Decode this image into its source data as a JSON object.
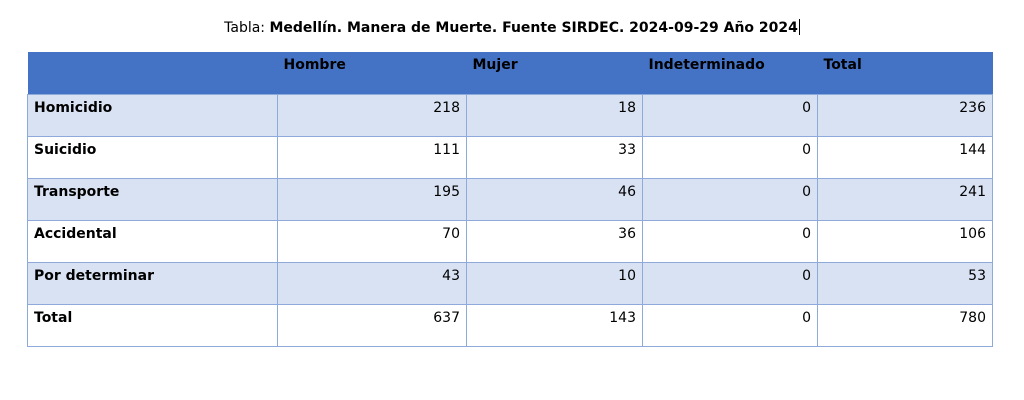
{
  "caption": {
    "prefix": "Tabla: ",
    "title": "Medellín. Manera de Muerte. Fuente SIRDEC. 2024-09-29 Año 2024"
  },
  "table": {
    "headers": [
      "",
      "Hombre",
      "Mujer",
      "Indeterminado",
      "Total"
    ],
    "rows": [
      {
        "label": "Homicidio",
        "values": [
          "218",
          "18",
          "0",
          "236"
        ]
      },
      {
        "label": "Suicidio",
        "values": [
          "111",
          "33",
          "0",
          "144"
        ]
      },
      {
        "label": "Transporte",
        "values": [
          "195",
          "46",
          "0",
          "241"
        ]
      },
      {
        "label": "Accidental",
        "values": [
          "70",
          "36",
          "0",
          "106"
        ]
      },
      {
        "label": "Por determinar",
        "values": [
          "43",
          "10",
          "0",
          "53"
        ]
      },
      {
        "label": "Total",
        "values": [
          "637",
          "143",
          "0",
          "780"
        ]
      }
    ]
  },
  "colors": {
    "header_bg": "#4472c4",
    "band_bg": "#d9e2f3",
    "border": "#8eaadb"
  }
}
